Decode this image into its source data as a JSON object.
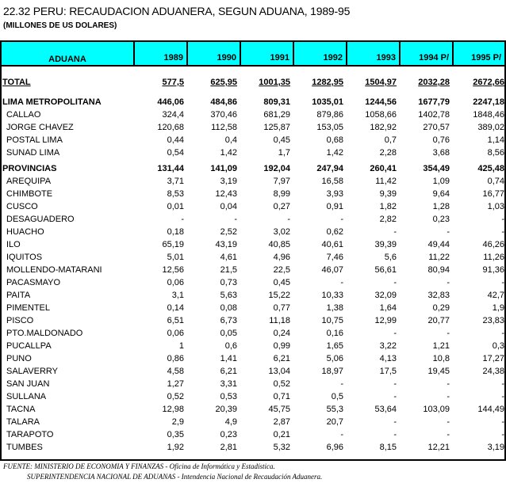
{
  "title": "22.32  PERU:  RECAUDACION ADUANERA, SEGUN ADUANA, 1989-95",
  "subtitle": "(MILLONES DE US DOLARES)",
  "columns": [
    "ADUANA",
    "1989",
    "1990",
    "1991",
    "1992",
    "1993",
    "1994 P/",
    "1995 P/"
  ],
  "total": {
    "name": "TOTAL",
    "values": [
      "577,5",
      "625,95",
      "1001,35",
      "1282,95",
      "1504,97",
      "2032,28",
      "2672,66"
    ]
  },
  "lima": {
    "name": "LIMA METROPOLITANA",
    "values": [
      "446,06",
      "484,86",
      "809,31",
      "1035,01",
      "1244,56",
      "1677,79",
      "2247,18"
    ],
    "rows": [
      {
        "name": "CALLAO",
        "values": [
          "324,4",
          "370,46",
          "681,29",
          "879,86",
          "1058,66",
          "1402,78",
          "1848,46"
        ]
      },
      {
        "name": "JORGE CHAVEZ",
        "values": [
          "120,68",
          "112,58",
          "125,87",
          "153,05",
          "182,92",
          "270,57",
          "389,02"
        ]
      },
      {
        "name": "POSTAL LIMA",
        "values": [
          "0,44",
          "0,4",
          "0,45",
          "0,68",
          "0,7",
          "0,76",
          "1,14"
        ]
      },
      {
        "name": "SUNAD LIMA",
        "values": [
          "0,54",
          "1,42",
          "1,7",
          "1,42",
          "2,28",
          "3,68",
          "8,56"
        ]
      }
    ]
  },
  "provincias": {
    "name": "PROVINCIAS",
    "values": [
      "131,44",
      "141,09",
      "192,04",
      "247,94",
      "260,41",
      "354,49",
      "425,48"
    ],
    "rows": [
      {
        "name": "AREQUIPA",
        "values": [
          "3,71",
          "3,19",
          "7,97",
          "16,58",
          "11,42",
          "1,09",
          "0,74"
        ]
      },
      {
        "name": "CHIMBOTE",
        "values": [
          "8,53",
          "12,43",
          "8,99",
          "3,93",
          "9,39",
          "9,64",
          "16,77"
        ]
      },
      {
        "name": "CUSCO",
        "values": [
          "0,01",
          "0,04",
          "0,27",
          "0,91",
          "1,82",
          "1,28",
          "1,03"
        ]
      },
      {
        "name": "DESAGUADERO",
        "values": [
          "-",
          "-",
          "-",
          "-",
          "2,82",
          "0,23",
          "-"
        ]
      },
      {
        "name": "HUACHO",
        "values": [
          "0,18",
          "2,52",
          "3,02",
          "0,62",
          "-",
          "-",
          "-"
        ]
      },
      {
        "name": "ILO",
        "values": [
          "65,19",
          "43,19",
          "40,85",
          "40,61",
          "39,39",
          "49,44",
          "46,26"
        ]
      },
      {
        "name": "IQUITOS",
        "values": [
          "5,01",
          "4,61",
          "4,96",
          "7,46",
          "5,6",
          "11,22",
          "11,26"
        ]
      },
      {
        "name": "MOLLENDO-MATARANI",
        "values": [
          "12,56",
          "21,5",
          "22,5",
          "46,07",
          "56,61",
          "80,94",
          "91,36"
        ]
      },
      {
        "name": "PACASMAYO",
        "values": [
          "0,06",
          "0,73",
          "0,45",
          "-",
          "-",
          "-",
          "-"
        ]
      },
      {
        "name": "PAITA",
        "values": [
          "3,1",
          "5,63",
          "15,22",
          "10,33",
          "32,09",
          "32,83",
          "42,7"
        ]
      },
      {
        "name": "PIMENTEL",
        "values": [
          "0,14",
          "0,08",
          "0,77",
          "1,38",
          "1,64",
          "0,29",
          "1,9"
        ]
      },
      {
        "name": "PISCO",
        "values": [
          "6,51",
          "6,73",
          "11,18",
          "10,75",
          "12,99",
          "20,77",
          "23,83"
        ]
      },
      {
        "name": "PTO.MALDONADO",
        "values": [
          "0,06",
          "0,05",
          "0,24",
          "0,16",
          "-",
          "-",
          "-"
        ]
      },
      {
        "name": "PUCALLPA",
        "values": [
          "1",
          "0,6",
          "0,99",
          "1,65",
          "3,22",
          "1,21",
          "0,3"
        ]
      },
      {
        "name": "PUNO",
        "values": [
          "0,86",
          "1,41",
          "6,21",
          "5,06",
          "4,13",
          "10,8",
          "17,27"
        ]
      },
      {
        "name": "SALAVERRY",
        "values": [
          "4,58",
          "6,21",
          "13,04",
          "18,97",
          "17,5",
          "19,45",
          "24,38"
        ]
      },
      {
        "name": "SAN JUAN",
        "values": [
          "1,27",
          "3,31",
          "0,52",
          "-",
          "-",
          "-",
          "-"
        ]
      },
      {
        "name": "SULLANA",
        "values": [
          "0,52",
          "0,53",
          "0,71",
          "0,5",
          "-",
          "-",
          "-"
        ]
      },
      {
        "name": "TACNA",
        "values": [
          "12,98",
          "20,39",
          "45,75",
          "55,3",
          "53,64",
          "103,09",
          "144,49"
        ]
      },
      {
        "name": "TALARA",
        "values": [
          "2,9",
          "4,9",
          "2,87",
          "20,7",
          "-",
          "-",
          "-"
        ]
      },
      {
        "name": "TARAPOTO",
        "values": [
          "0,35",
          "0,23",
          "0,21",
          "-",
          "-",
          "-",
          "-"
        ]
      },
      {
        "name": "TUMBES",
        "values": [
          "1,92",
          "2,81",
          "5,32",
          "6,96",
          "8,15",
          "12,21",
          "3,19"
        ]
      }
    ]
  },
  "footer": {
    "line1": "FUENTE: MINISTERIO DE ECONOMIA Y FINANZAS - Oficina de Informática y Estadística.",
    "line2": "SUPERINTENDENCIA NACIONAL DE ADUANAS - Intendencia Nacional de Recaudación Aduanera."
  }
}
